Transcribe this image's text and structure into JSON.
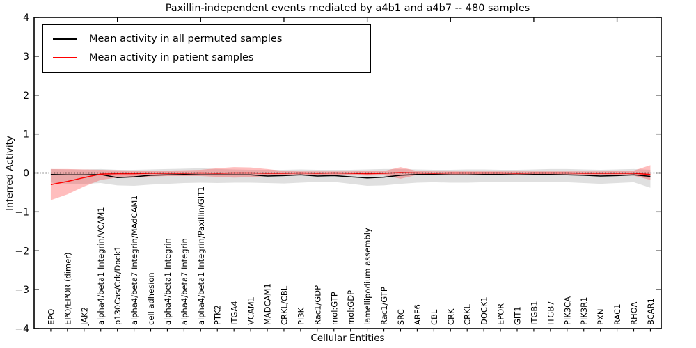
{
  "title": "Paxillin-independent events mediated by a4b1 and a4b7 -- 480 samples",
  "axes": {
    "xlabel": "Cellular Entities",
    "ylabel": "Inferred Activity"
  },
  "legend": {
    "items": [
      {
        "label": "Mean activity in all permuted samples",
        "color": "#000000"
      },
      {
        "label": "Mean activity in patient samples",
        "color": "#ff0000"
      }
    ]
  },
  "colors": {
    "permuted_line": "#000000",
    "patient_line": "#ff0000",
    "permuted_band": "#999999",
    "patient_band": "#ff3333",
    "frame": "#000000",
    "zero_line": "#000000"
  },
  "chart_data": {
    "type": "line",
    "title": "Paxillin-independent events mediated by a4b1 and a4b7 -- 480 samples",
    "xlabel": "Cellular Entities",
    "ylabel": "Inferred Activity",
    "ylim": [
      -4,
      4
    ],
    "yticks": [
      4,
      3,
      2,
      1,
      0,
      -1,
      -2,
      -3,
      -4
    ],
    "grid": false,
    "legend_position": "upper left",
    "reference_line": {
      "y": 0,
      "style": "dotted",
      "color": "#000000"
    },
    "categories": [
      "EPO",
      "EPO/EPOR (dimer)",
      "JAK2",
      "alpha4/beta1 Integrin/VCAM1",
      "p130Cas/Crk/Dock1",
      "alpha4/beta7 Integrin/MAdCAM1",
      "cell adhesion",
      "alpha4/beta1 Integrin",
      "alpha4/beta7 Integrin",
      "alpha4/beta1 Integrin/Paxillin/GIT1",
      "PTK2",
      "ITGA4",
      "VCAM1",
      "MADCAM1",
      "CRKL/CBL",
      "PI3K",
      "Rac1/GDP",
      "mol:GTP",
      "mol:GDP",
      "lamellipodium assembly",
      "Rac1/GTP",
      "SRC",
      "ARF6",
      "CBL",
      "CRK",
      "CRKL",
      "DOCK1",
      "EPOR",
      "GIT1",
      "ITGB1",
      "ITGB7",
      "PIK3CA",
      "PIK3R1",
      "PXN",
      "RAC1",
      "RHOA",
      "BCAR1"
    ],
    "series": [
      {
        "name": "Mean activity in all permuted samples",
        "color": "#000000",
        "values": [
          -0.04,
          -0.05,
          -0.05,
          -0.04,
          -0.12,
          -0.1,
          -0.06,
          -0.05,
          -0.04,
          -0.05,
          -0.05,
          -0.05,
          -0.05,
          -0.08,
          -0.07,
          -0.05,
          -0.08,
          -0.07,
          -0.1,
          -0.13,
          -0.11,
          -0.06,
          -0.04,
          -0.04,
          -0.05,
          -0.05,
          -0.04,
          -0.04,
          -0.05,
          -0.04,
          -0.04,
          -0.05,
          -0.06,
          -0.08,
          -0.07,
          -0.05,
          -0.09
        ],
        "band_upper": [
          0.1,
          0.09,
          0.09,
          0.1,
          0.08,
          0.08,
          0.09,
          0.1,
          0.11,
          0.12,
          0.1,
          0.09,
          0.08,
          0.08,
          0.08,
          0.09,
          0.08,
          0.08,
          0.08,
          0.09,
          0.1,
          0.1,
          0.09,
          0.08,
          0.08,
          0.09,
          0.09,
          0.08,
          0.08,
          0.09,
          0.1,
          0.1,
          0.09,
          0.08,
          0.09,
          0.1,
          0.08
        ],
        "band_lower": [
          -0.25,
          -0.28,
          -0.28,
          -0.26,
          -0.32,
          -0.33,
          -0.3,
          -0.28,
          -0.26,
          -0.25,
          -0.26,
          -0.25,
          -0.25,
          -0.26,
          -0.27,
          -0.25,
          -0.23,
          -0.23,
          -0.28,
          -0.33,
          -0.32,
          -0.28,
          -0.25,
          -0.24,
          -0.25,
          -0.25,
          -0.24,
          -0.23,
          -0.24,
          -0.23,
          -0.23,
          -0.24,
          -0.26,
          -0.28,
          -0.26,
          -0.24,
          -0.38
        ]
      },
      {
        "name": "Mean activity in patient samples",
        "color": "#ff0000",
        "values": [
          -0.3,
          -0.22,
          -0.12,
          -0.03,
          -0.02,
          -0.02,
          -0.01,
          -0.01,
          -0.01,
          0.0,
          -0.01,
          0.0,
          0.0,
          -0.01,
          -0.01,
          0.0,
          -0.01,
          0.0,
          -0.01,
          -0.02,
          -0.01,
          0.01,
          0.0,
          -0.01,
          0.0,
          0.0,
          0.0,
          0.0,
          -0.01,
          0.0,
          0.0,
          0.0,
          -0.01,
          -0.01,
          -0.01,
          -0.01,
          -0.04
        ],
        "band_upper": [
          0.1,
          0.1,
          0.09,
          0.08,
          0.07,
          0.06,
          0.05,
          0.06,
          0.07,
          0.08,
          0.12,
          0.15,
          0.14,
          0.1,
          0.05,
          0.04,
          0.04,
          0.04,
          0.04,
          0.05,
          0.05,
          0.15,
          0.05,
          0.04,
          0.04,
          0.04,
          0.04,
          0.04,
          0.04,
          0.04,
          0.04,
          0.04,
          0.04,
          0.04,
          0.05,
          0.06,
          0.2
        ],
        "band_lower": [
          -0.7,
          -0.55,
          -0.35,
          -0.18,
          -0.12,
          -0.12,
          -0.09,
          -0.08,
          -0.08,
          -0.08,
          -0.1,
          -0.12,
          -0.11,
          -0.08,
          -0.06,
          -0.05,
          -0.05,
          -0.05,
          -0.05,
          -0.07,
          -0.06,
          -0.15,
          -0.05,
          -0.05,
          -0.05,
          -0.05,
          -0.05,
          -0.04,
          -0.05,
          -0.05,
          -0.04,
          -0.04,
          -0.05,
          -0.05,
          -0.06,
          -0.07,
          -0.18
        ]
      }
    ],
    "top_tick_indices": [
      4,
      9,
      14,
      19,
      24,
      29,
      34
    ]
  }
}
